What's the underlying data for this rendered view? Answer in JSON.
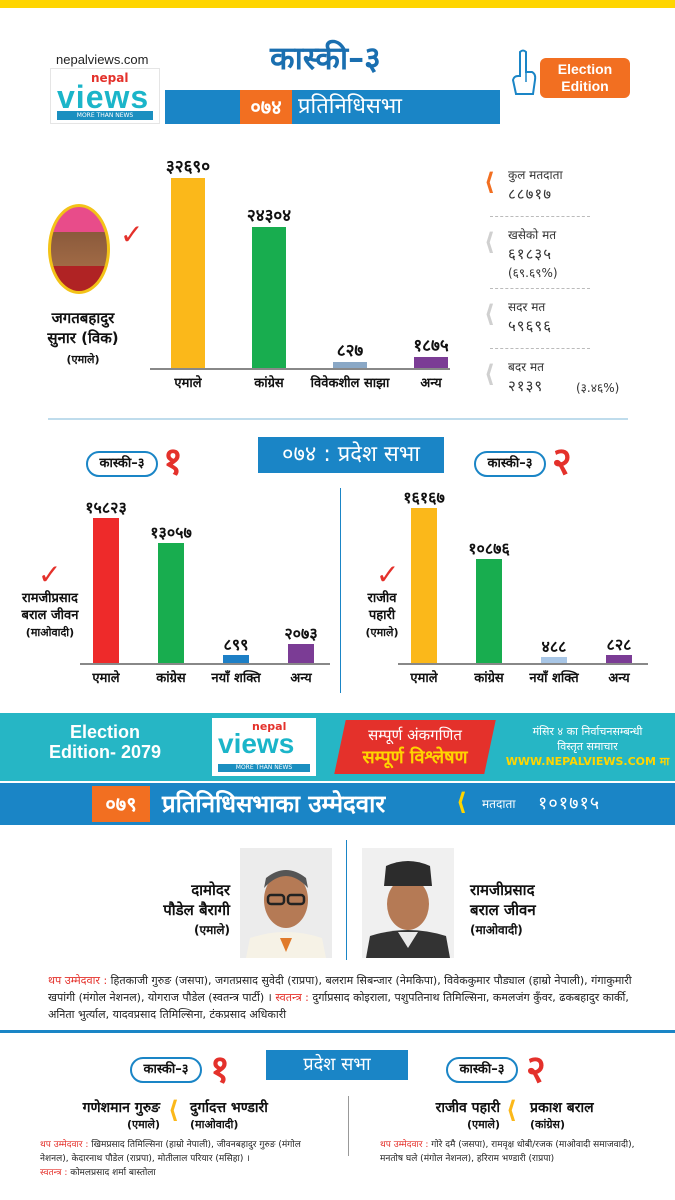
{
  "header": {
    "site_url": "nepalviews.com",
    "logo": {
      "nepal": "nepal",
      "views": "views",
      "tagline": "MORE THAN NEWS"
    },
    "title": "कास्की–३",
    "badge": "Election Edition"
  },
  "hor_2074": {
    "year": "०७४",
    "label": "प्रतिनिधिसभा",
    "winner": {
      "name_line1": "जगतबहादुर",
      "name_line2": "सुनार (विक)",
      "party": "(एमाले)"
    },
    "chart_data": {
      "type": "bar",
      "categories": [
        "एमाले",
        "कांग्रेस",
        "विवेकशील साझा",
        "अन्य"
      ],
      "values": [
        32690,
        24304,
        827,
        1875
      ],
      "value_labels": [
        "३२६९०",
        "२४३०४",
        "८२७",
        "१८७५"
      ],
      "colors": [
        "#fbb81a",
        "#18ad4f",
        "#8aa8c6",
        "#7b3c95"
      ]
    },
    "stats": [
      {
        "label": "कुल मतदाता",
        "value": "८८७१७",
        "extra": "",
        "color": "#f26f21"
      },
      {
        "label": "खसेको मत",
        "value": "६१८३५",
        "extra": "(६९.६९%)",
        "color": "#d0d0d0"
      },
      {
        "label": "सदर मत",
        "value": "५९६९६",
        "extra": "",
        "color": "#d0d0d0"
      },
      {
        "label": "बदर मत",
        "value": "२१३९",
        "extra": "(३.४६%)",
        "color": "#d0d0d0"
      }
    ]
  },
  "pradesh_2074": {
    "band": "०७४ : प्रदेश सभा",
    "left": {
      "kaski": "कास्की–३",
      "num": "१",
      "winner": {
        "name_line1": "रामजीप्रसाद",
        "name_line2": "बराल जीवन",
        "party": "(माओवादी)"
      },
      "chart_data": {
        "type": "bar",
        "categories": [
          "एमाले",
          "कांग्रेस",
          "नयाँ शक्ति",
          "अन्य"
        ],
        "values": [
          15823,
          13057,
          899,
          2073
        ],
        "value_labels": [
          "१५८२३",
          "१३०५७",
          "८९९",
          "२०७३"
        ],
        "colors": [
          "#ee2a2a",
          "#18ad4f",
          "#1d7fc6",
          "#7b3c95"
        ]
      }
    },
    "right": {
      "kaski": "कास्की–३",
      "num": "२",
      "winner": {
        "name_line1": "राजीव",
        "name_line2": "पहारी",
        "party": "(एमाले)"
      },
      "chart_data": {
        "type": "bar",
        "categories": [
          "एमाले",
          "कांग्रेस",
          "नयाँ शक्ति",
          "अन्य"
        ],
        "values": [
          16167,
          10876,
          488,
          828
        ],
        "value_labels": [
          "१६१६७",
          "१०८७६",
          "४८८",
          "८२८"
        ],
        "colors": [
          "#fbb81a",
          "#18ad4f",
          "#a8c6e6",
          "#7b3c95"
        ]
      }
    }
  },
  "promo": {
    "edition_line1": "Election",
    "edition_line2": "Edition- 2079",
    "red_line1": "सम्पूर्ण अंकगणित",
    "red_line2": "सम्पूर्ण विश्लेषण",
    "right_line1": "मंसिर ४ का निर्वाचनसम्बन्धी",
    "right_line2": "विस्तृत समाचार",
    "right_url": "WWW.NEPALVIEWS.COM मा"
  },
  "hor_2079": {
    "year": "०७९",
    "title": "प्रतिनिधिसभाका उम्मेदवार",
    "voters_label": "मतदाता",
    "voters": "१०१७१५",
    "cand_left": {
      "name_line1": "दामोदर",
      "name_line2": "पौडेल बैरागी",
      "party": "(एमाले)"
    },
    "cand_right": {
      "name_line1": "रामजीप्रसाद",
      "name_line2": "बराल जीवन",
      "party": "(माओवादी)"
    },
    "others_label": "थप उम्मेदवार :",
    "others_text": " हितकाजी गुरुङ (जसपा), जगतप्रसाद सुवेदी (राप्रपा), बलराम सिबन्जार (नेमकिपा), विवेककुमार पौड्याल (हाम्रो नेपाली), गंगाकुमारी खपांगी (मंगोल नेशनल), योगराज पौडेल (स्वतन्त्र पार्टी) ।",
    "independent_label": " स्वतन्त्र :",
    "independent_text": " दुर्गाप्रसाद कोइराला, पशुपतिनाथ तिमिल्सिना, कमलजंग कुँवर, ढकबहादुर कार्की, अनिता भुर्त्याल, यादवप्रसाद तिमिल्सिना, टंकप्रसाद अधिकारी"
  },
  "pradesh_2079": {
    "band": "प्रदेश सभा",
    "left": {
      "kaski": "कास्की–३",
      "num": "१",
      "cand1": {
        "name": "गणेशमान गुरुङ",
        "party": "(एमाले)"
      },
      "cand2": {
        "name": "दुर्गादत्त भण्डारी",
        "party": "(माओवादी)"
      },
      "others_label": "थप उम्मेदवार :",
      "others_text": " खिमप्रसाद तिमिल्सिना (हाम्रो नेपाली), जीवनबहादुर गुरुङ (मंगोल नेशनल), केदारनाथ पौडेल (राप्रपा), मोतीलाल परियार (मसिहा) ।",
      "ind_label": "स्वतन्त्र :",
      "ind_text": " कोमलप्रसाद शर्मा बास्तोला"
    },
    "right": {
      "kaski": "कास्की–३",
      "num": "२",
      "cand1": {
        "name": "राजीव पहारी",
        "party": "(एमाले)"
      },
      "cand2": {
        "name": "प्रकाश बराल",
        "party": "(कांग्रेस)"
      },
      "others_label": "थप उम्मेदवार :",
      "others_text": " गोरे दमै (जसपा), रामवृक्ष धोबी/रजक (माओवादी समाजवादी), मनतोष घले (मंगोल नेशनल), हरिराम भण्डारी (राप्रपा)"
    }
  }
}
